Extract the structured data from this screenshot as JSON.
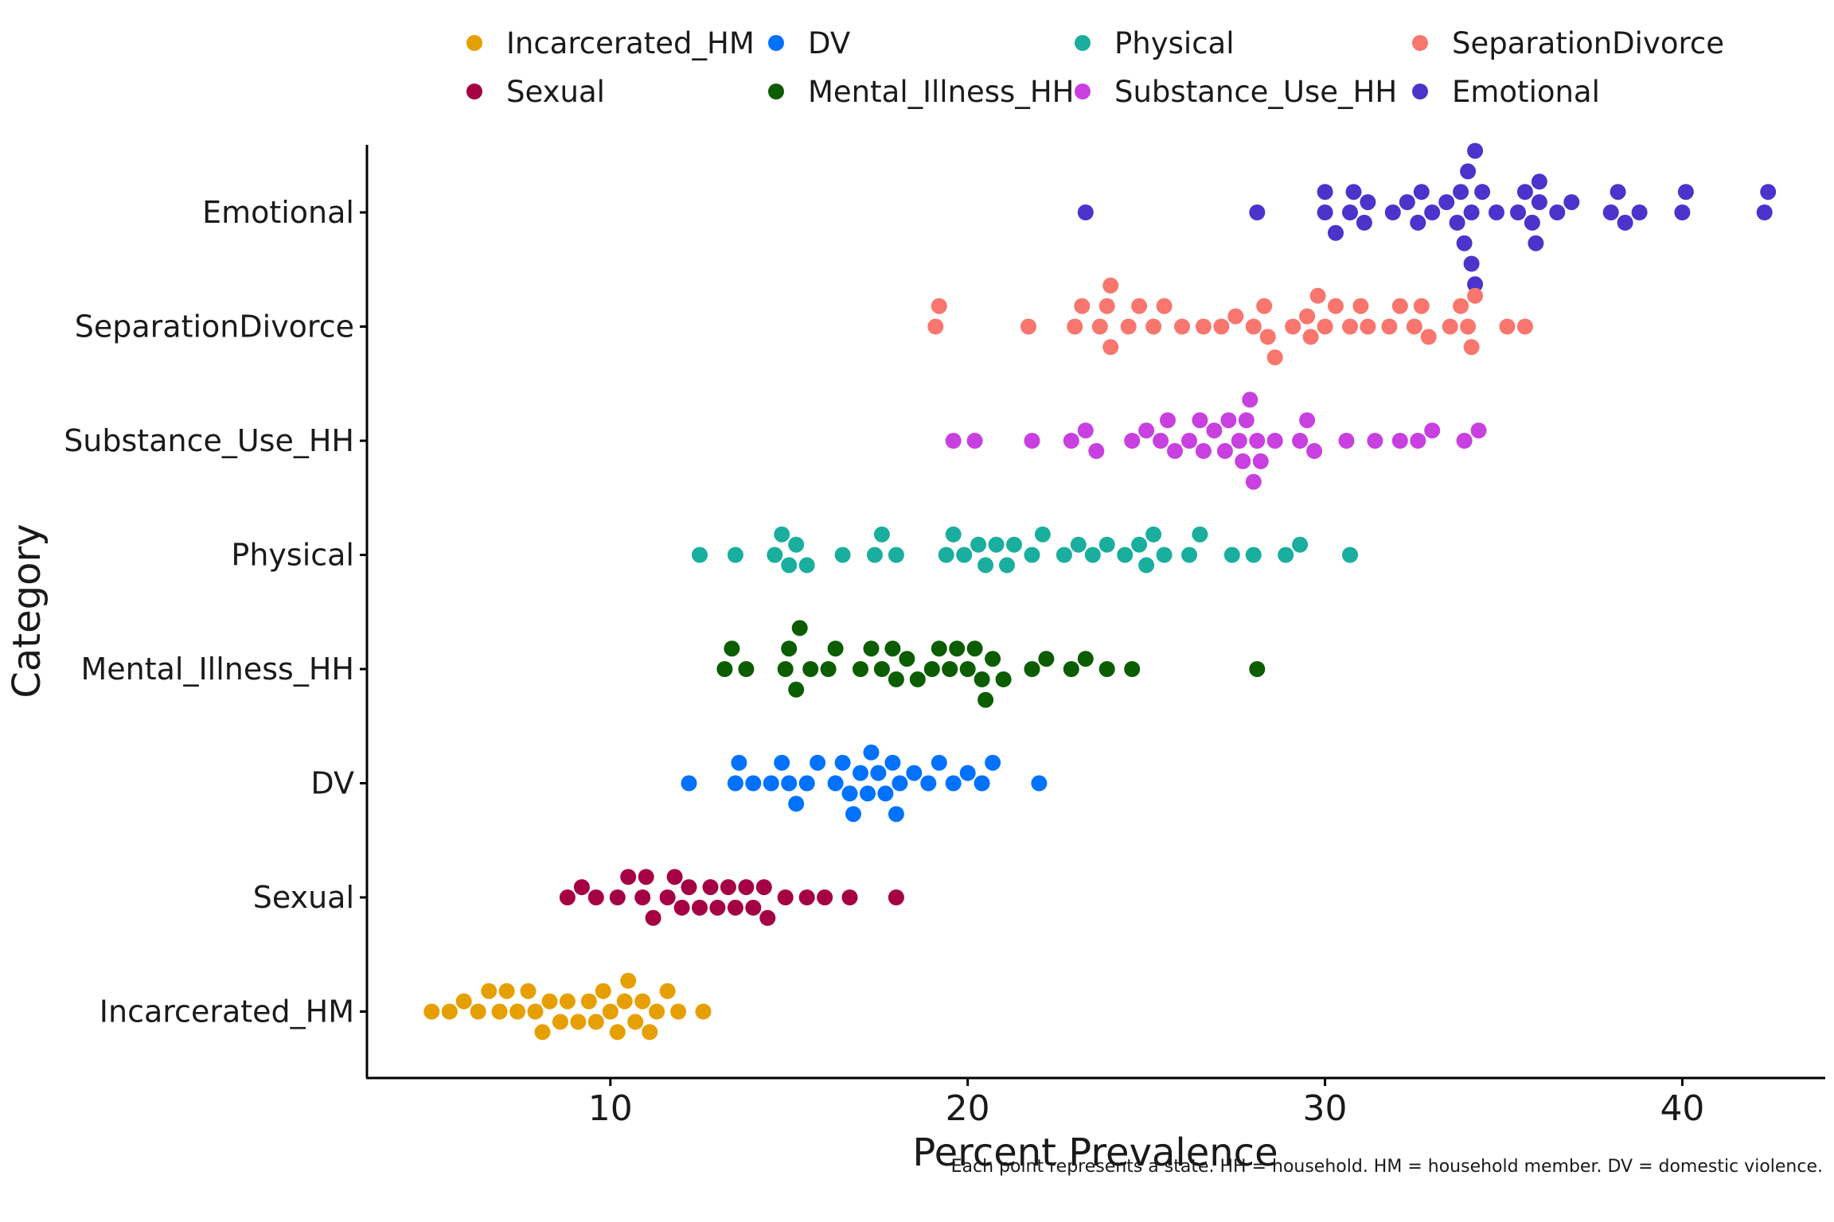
{
  "chart_data": {
    "type": "scatter",
    "subtype": "beeswarm",
    "title": "",
    "xlabel": "Percent Prevalence",
    "ylabel": "Category",
    "caption": "Each point represents a state. HH = household. HM = household member. DV = domestic violence.",
    "xlim": [
      3.5,
      44
    ],
    "xticks": [
      10,
      20,
      30,
      40
    ],
    "grid": false,
    "legend_position": "top",
    "categories": [
      "Emotional",
      "SeparationDivorce",
      "Substance_Use_HH",
      "Physical",
      "Mental_Illness_HH",
      "DV",
      "Sexual",
      "Incarcerated_HM"
    ],
    "legend": [
      {
        "name": "Incarcerated_HM",
        "color": "#E69F00"
      },
      {
        "name": "DV",
        "color": "#0072FF"
      },
      {
        "name": "Physical",
        "color": "#1AAE9F"
      },
      {
        "name": "SeparationDivorce",
        "color": "#F8766D"
      },
      {
        "name": "Sexual",
        "color": "#A50044"
      },
      {
        "name": "Mental_Illness_HH",
        "color": "#0B5D00"
      },
      {
        "name": "Substance_Use_HH",
        "color": "#C840E0"
      },
      {
        "name": "Emotional",
        "color": "#4B33CC"
      }
    ],
    "series": [
      {
        "name": "Emotional",
        "color": "#4B33CC",
        "values": [
          23.3,
          28.1,
          30.0,
          30.0,
          30.3,
          30.7,
          30.8,
          31.1,
          31.2,
          31.9,
          32.3,
          32.6,
          32.7,
          33.0,
          33.4,
          33.7,
          33.8,
          33.9,
          34.0,
          34.1,
          34.1,
          34.2,
          34.2,
          34.4,
          34.8,
          35.4,
          35.6,
          35.8,
          35.9,
          36.0,
          36.0,
          36.5,
          36.9,
          38.0,
          38.2,
          38.4,
          38.8,
          40.0,
          40.1,
          42.3,
          42.4
        ]
      },
      {
        "name": "SeparationDivorce",
        "color": "#F8766D",
        "values": [
          19.1,
          19.2,
          21.7,
          23.0,
          23.2,
          23.7,
          23.9,
          24.0,
          24.0,
          24.5,
          24.8,
          25.2,
          25.5,
          26.0,
          26.6,
          27.1,
          27.5,
          28.0,
          28.3,
          28.4,
          28.6,
          29.1,
          29.5,
          29.6,
          29.8,
          30.0,
          30.3,
          30.7,
          31.0,
          31.2,
          31.8,
          32.1,
          32.5,
          32.7,
          32.9,
          33.5,
          33.8,
          34.0,
          34.1,
          34.2,
          35.1,
          35.6
        ]
      },
      {
        "name": "Substance_Use_HH",
        "color": "#C840E0",
        "values": [
          19.6,
          20.2,
          21.8,
          22.9,
          23.3,
          23.6,
          24.6,
          25.0,
          25.4,
          25.6,
          25.8,
          26.2,
          26.5,
          26.6,
          26.9,
          27.2,
          27.3,
          27.6,
          27.7,
          27.8,
          27.9,
          28.0,
          28.1,
          28.2,
          28.6,
          29.3,
          29.5,
          29.7,
          30.6,
          31.4,
          32.1,
          32.6,
          33.0,
          33.9,
          34.3
        ]
      },
      {
        "name": "Physical",
        "color": "#1AAE9F",
        "values": [
          12.5,
          13.5,
          14.6,
          14.8,
          15.0,
          15.2,
          15.5,
          16.5,
          17.4,
          17.6,
          18.0,
          19.4,
          19.6,
          19.9,
          20.3,
          20.5,
          20.8,
          21.1,
          21.3,
          21.8,
          22.1,
          22.7,
          23.1,
          23.5,
          23.9,
          24.4,
          24.8,
          25.0,
          25.2,
          25.5,
          26.2,
          26.5,
          27.4,
          28.0,
          28.9,
          29.3,
          30.7
        ]
      },
      {
        "name": "Mental_Illness_HH",
        "color": "#0B5D00",
        "values": [
          13.2,
          13.4,
          13.8,
          14.9,
          15.0,
          15.2,
          15.3,
          15.6,
          16.1,
          16.3,
          17.0,
          17.3,
          17.6,
          17.9,
          18.0,
          18.3,
          18.6,
          19.0,
          19.2,
          19.5,
          19.7,
          20.0,
          20.2,
          20.4,
          20.5,
          20.7,
          21.0,
          21.8,
          22.2,
          22.9,
          23.3,
          23.9,
          24.6,
          28.1
        ]
      },
      {
        "name": "DV",
        "color": "#0072FF",
        "values": [
          12.2,
          13.5,
          13.6,
          14.0,
          14.5,
          14.8,
          15.0,
          15.2,
          15.5,
          15.8,
          16.3,
          16.5,
          16.7,
          16.8,
          17.0,
          17.2,
          17.3,
          17.5,
          17.7,
          17.9,
          18.0,
          18.1,
          18.5,
          18.9,
          19.2,
          19.6,
          20.0,
          20.4,
          20.7,
          22.0
        ]
      },
      {
        "name": "Sexual",
        "color": "#A50044",
        "values": [
          8.8,
          9.2,
          9.6,
          10.2,
          10.5,
          10.9,
          11.0,
          11.2,
          11.6,
          11.8,
          12.0,
          12.2,
          12.5,
          12.8,
          13.0,
          13.3,
          13.5,
          13.8,
          14.0,
          14.3,
          14.4,
          14.9,
          15.5,
          16.0,
          16.7,
          18.0
        ]
      },
      {
        "name": "Incarcerated_HM",
        "color": "#E69F00",
        "values": [
          5.0,
          5.5,
          5.9,
          6.3,
          6.6,
          6.9,
          7.1,
          7.4,
          7.7,
          7.9,
          8.1,
          8.3,
          8.6,
          8.8,
          9.1,
          9.4,
          9.6,
          9.8,
          10.0,
          10.2,
          10.4,
          10.5,
          10.7,
          10.9,
          11.1,
          11.3,
          11.6,
          11.9,
          12.6
        ]
      }
    ]
  }
}
